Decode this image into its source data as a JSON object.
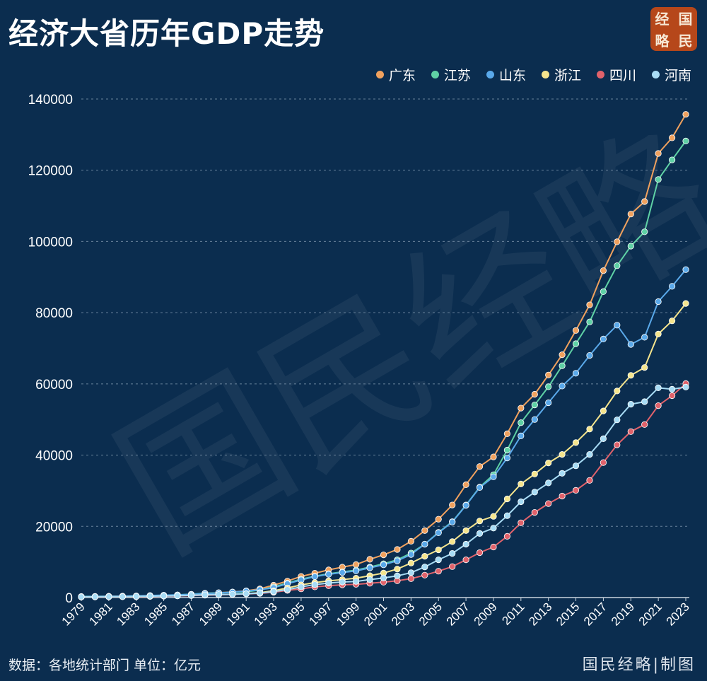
{
  "header": {
    "title": "经济大省历年GDP走势"
  },
  "logo": {
    "chars": [
      "经",
      "国",
      "略",
      "民"
    ]
  },
  "watermark": {
    "text": "国民经略"
  },
  "footer": {
    "source": "数据：各地统计部门 单位：亿元",
    "credit": "国民经略|制图"
  },
  "colors": {
    "background": "#0b2d4f",
    "grid": "#7f96ad"
  },
  "chart_data": {
    "type": "line",
    "title": "经济大省历年GDP走势",
    "xlabel": "",
    "ylabel": "",
    "unit": "亿元",
    "legend_position": "top-right",
    "grid": true,
    "ylim": [
      0,
      140000
    ],
    "yticks": [
      0,
      20000,
      40000,
      60000,
      80000,
      100000,
      120000,
      140000
    ],
    "xticks": [
      1979,
      1981,
      1983,
      1985,
      1987,
      1989,
      1991,
      1993,
      1995,
      1997,
      1999,
      2001,
      2003,
      2005,
      2007,
      2009,
      2011,
      2013,
      2015,
      2017,
      2019,
      2021,
      2023
    ],
    "x": [
      1979,
      1980,
      1981,
      1982,
      1983,
      1984,
      1985,
      1986,
      1987,
      1988,
      1989,
      1990,
      1991,
      1992,
      1993,
      1994,
      1995,
      1996,
      1997,
      1998,
      1999,
      2000,
      2001,
      2002,
      2003,
      2004,
      2005,
      2006,
      2007,
      2008,
      2009,
      2010,
      2011,
      2012,
      2013,
      2014,
      2015,
      2016,
      2017,
      2018,
      2019,
      2020,
      2021,
      2022,
      2023
    ],
    "series": [
      {
        "name": "广东",
        "color": "#f0a15e",
        "values": [
          210,
          250,
          290,
          340,
          370,
          460,
          580,
          670,
          850,
          1160,
          1380,
          1560,
          1890,
          2450,
          3470,
          4620,
          5930,
          6830,
          7770,
          8530,
          9250,
          10740,
          12000,
          13500,
          15800,
          18800,
          22000,
          26000,
          31700,
          36800,
          39500,
          46000,
          53200,
          57100,
          62500,
          68200,
          75000,
          82200,
          91800,
          99900,
          107700,
          111200,
          124700,
          129100,
          135700
        ]
      },
      {
        "name": "江苏",
        "color": "#5fd1a5",
        "values": [
          300,
          320,
          350,
          380,
          430,
          520,
          650,
          745,
          925,
          1210,
          1320,
          1420,
          1600,
          2140,
          2990,
          4060,
          5160,
          6000,
          6680,
          7200,
          7700,
          8550,
          9500,
          10600,
          12500,
          15000,
          18300,
          21300,
          26000,
          31000,
          34500,
          41400,
          49100,
          54100,
          59200,
          65100,
          71300,
          77400,
          85900,
          93200,
          98700,
          102700,
          117400,
          122900,
          128200
        ]
      },
      {
        "name": "山东",
        "color": "#5aa9ea",
        "values": [
          230,
          290,
          350,
          390,
          450,
          570,
          680,
          740,
          890,
          1120,
          1300,
          1510,
          1800,
          2200,
          2770,
          3870,
          4950,
          5880,
          6540,
          7020,
          7490,
          8340,
          9200,
          10300,
          12100,
          15000,
          18200,
          21200,
          25900,
          30900,
          33900,
          39200,
          45400,
          50000,
          54700,
          59400,
          63000,
          68000,
          72600,
          76500,
          71100,
          73100,
          83100,
          87400,
          92100
        ]
      },
      {
        "name": "浙江",
        "color": "#f6e58d",
        "values": [
          150,
          180,
          200,
          230,
          260,
          320,
          430,
          500,
          610,
          770,
          850,
          900,
          1090,
          1380,
          1920,
          2690,
          3560,
          4190,
          4690,
          5050,
          5440,
          6140,
          6900,
          8000,
          9700,
          11600,
          13400,
          15700,
          18800,
          21500,
          22800,
          27700,
          31900,
          34700,
          37800,
          40200,
          43500,
          47300,
          52400,
          58000,
          62400,
          64600,
          74000,
          77700,
          82600
        ]
      },
      {
        "name": "四川",
        "color": "#e0626b",
        "values": [
          170,
          200,
          220,
          240,
          280,
          320,
          400,
          460,
          550,
          670,
          750,
          890,
          1020,
          1180,
          1490,
          2000,
          2440,
          2990,
          3320,
          3580,
          3710,
          4010,
          4300,
          4700,
          5300,
          6300,
          7400,
          8700,
          10600,
          12600,
          14200,
          17200,
          21000,
          23900,
          26400,
          28500,
          30100,
          32900,
          37900,
          42900,
          46600,
          48600,
          53900,
          56700,
          60100
        ]
      },
      {
        "name": "河南",
        "color": "#a8dcf5",
        "values": [
          190,
          230,
          250,
          260,
          330,
          370,
          450,
          500,
          610,
          750,
          850,
          930,
          1050,
          1280,
          1660,
          2220,
          2990,
          3630,
          4080,
          4360,
          4520,
          5050,
          5500,
          6100,
          7000,
          8600,
          10600,
          12400,
          15000,
          18000,
          19500,
          23000,
          26900,
          29600,
          32200,
          34900,
          37000,
          40200,
          44600,
          49900,
          54300,
          55000,
          58900,
          58500,
          59100
        ]
      }
    ]
  }
}
